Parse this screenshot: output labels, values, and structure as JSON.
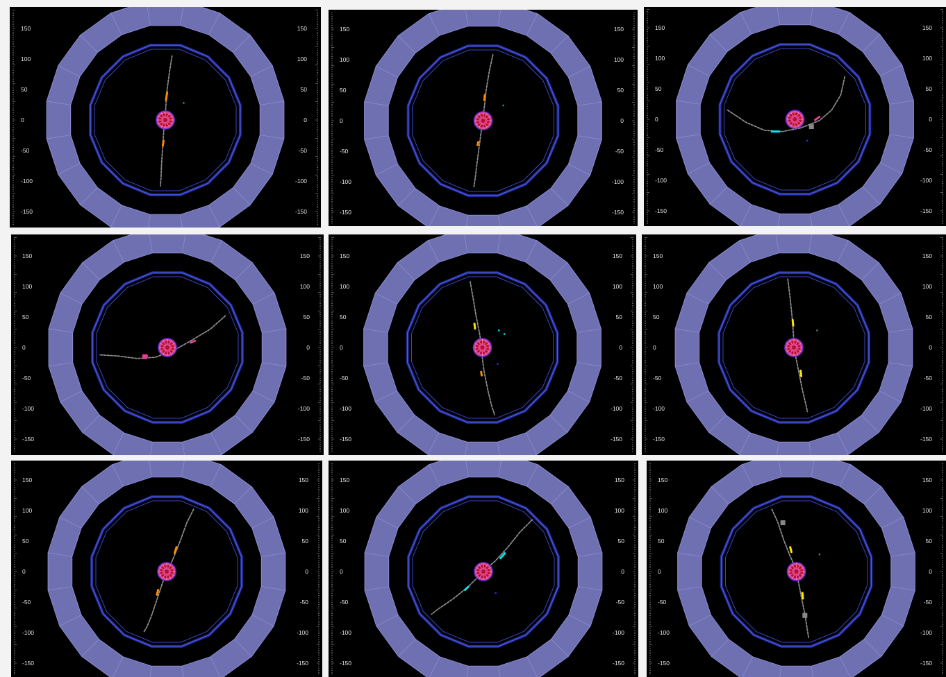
{
  "axis_tick_labels": [
    "150",
    "100",
    "50",
    "0",
    "-50",
    "-100",
    "-150"
  ],
  "colors": {
    "background": "#000000",
    "outer_ring": "#6f70b2",
    "inner_ring": "#1e2a9a",
    "core_pink": "#e0448e",
    "core_red": "#b3112e",
    "track_gray": "#8a8a8a"
  },
  "panels": [
    {
      "id": "p1",
      "tracks": [
        {
          "color": "#8a8a8a",
          "points": [
            [
              11,
              105
            ],
            [
              7,
              80
            ],
            [
              3,
              50
            ],
            [
              1,
              25
            ],
            [
              0,
              8
            ]
          ]
        },
        {
          "color": "#8a8a8a",
          "points": [
            [
              -2,
              -10
            ],
            [
              -4,
              -40
            ],
            [
              -6,
              -70
            ],
            [
              -7,
              -95
            ],
            [
              -8,
              -108
            ]
          ]
        },
        {
          "color": "#ff8c00",
          "points": [
            [
              3,
              45
            ],
            [
              1,
              32
            ]
          ]
        },
        {
          "color": "#ff8c00",
          "points": [
            [
              -3,
              -34
            ],
            [
              -4,
              -42
            ]
          ]
        }
      ],
      "hits": [
        {
          "color": "#3f8f55",
          "xy": [
            30,
            28
          ]
        }
      ]
    },
    {
      "id": "p2",
      "tracks": [
        {
          "color": "#8a8a8a",
          "points": [
            [
              16,
              108
            ],
            [
              10,
              80
            ],
            [
              5,
              50
            ],
            [
              2,
              22
            ],
            [
              0,
              8
            ]
          ]
        },
        {
          "color": "#8a8a8a",
          "points": [
            [
              -2,
              -10
            ],
            [
              -6,
              -40
            ],
            [
              -10,
              -70
            ],
            [
              -13,
              -95
            ],
            [
              -15,
              -108
            ]
          ]
        },
        {
          "color": "#ff8c00",
          "points": [
            [
              3,
              42
            ],
            [
              2,
              34
            ]
          ]
        },
        {
          "color": "#ff8c00",
          "points": [
            [
              -8,
              -35
            ],
            [
              -9,
              -40
            ]
          ]
        }
      ],
      "hits": [
        {
          "color": "#3f8f55",
          "xy": [
            33,
            25
          ]
        }
      ]
    },
    {
      "id": "p3",
      "tracks": [
        {
          "color": "#8a8a8a",
          "points": [
            [
              -110,
              15
            ],
            [
              -80,
              -5
            ],
            [
              -50,
              -18
            ],
            [
              -20,
              -20
            ],
            [
              10,
              -14
            ],
            [
              40,
              -2
            ],
            [
              60,
              15
            ],
            [
              75,
              40
            ],
            [
              82,
              72
            ]
          ]
        },
        {
          "color": "#00e5ee",
          "points": [
            [
              -38,
              -20
            ],
            [
              -25,
              -20
            ]
          ]
        },
        {
          "color": "#e0448e",
          "points": [
            [
              33,
              -1
            ],
            [
              40,
              4
            ]
          ]
        }
      ],
      "hits": [
        {
          "color": "#2233dd",
          "xy": [
            20,
            -35
          ]
        },
        {
          "color": "#888888",
          "xy": [
            27,
            -12
          ]
        }
      ]
    },
    {
      "id": "p4",
      "tracks": [
        {
          "color": "#8a8a8a",
          "points": [
            [
              -110,
              -12
            ],
            [
              -80,
              -14
            ],
            [
              -50,
              -18
            ],
            [
              -20,
              -16
            ],
            [
              10,
              -5
            ],
            [
              40,
              12
            ],
            [
              70,
              30
            ],
            [
              95,
              52
            ]
          ]
        },
        {
          "color": "#e0448e",
          "points": [
            [
              -38,
              -17
            ],
            [
              -33,
              -14
            ]
          ]
        },
        {
          "color": "#e0448e",
          "points": [
            [
              38,
              8
            ],
            [
              45,
              11
            ]
          ]
        }
      ],
      "hits": [
        {
          "color": "#e0448e",
          "xy": [
            -37,
            -15
          ]
        }
      ]
    },
    {
      "id": "p5",
      "tracks": [
        {
          "color": "#8a8a8a",
          "points": [
            [
              -20,
              108
            ],
            [
              -15,
              80
            ],
            [
              -10,
              50
            ],
            [
              -5,
              25
            ],
            [
              -2,
              8
            ]
          ]
        },
        {
          "color": "#8a8a8a",
          "points": [
            [
              -1,
              -10
            ],
            [
              3,
              -40
            ],
            [
              9,
              -70
            ],
            [
              15,
              -95
            ],
            [
              20,
              -110
            ]
          ]
        },
        {
          "color": "#ffe600",
          "points": [
            [
              -13,
              39
            ],
            [
              -12,
              31
            ]
          ]
        },
        {
          "color": "#ff8c00",
          "points": [
            [
              -2,
              -40
            ],
            [
              -1,
              -46
            ]
          ]
        }
      ],
      "hits": [
        {
          "color": "#00e5ee",
          "xy": [
            27,
            28
          ]
        },
        {
          "color": "#00e5ee",
          "xy": [
            36,
            22
          ]
        },
        {
          "color": "#2233dd",
          "xy": [
            25,
            -27
          ]
        }
      ]
    },
    {
      "id": "p6",
      "tracks": [
        {
          "color": "#8a8a8a",
          "points": [
            [
              -10,
              112
            ],
            [
              -6,
              80
            ],
            [
              -3,
              50
            ],
            [
              -1,
              25
            ],
            [
              0,
              8
            ]
          ]
        },
        {
          "color": "#8a8a8a",
          "points": [
            [
              2,
              -10
            ],
            [
              8,
              -40
            ],
            [
              14,
              -70
            ],
            [
              20,
              -95
            ],
            [
              22,
              -105
            ]
          ]
        },
        {
          "color": "#ffe600",
          "points": [
            [
              -2,
              45
            ],
            [
              -1,
              35
            ]
          ]
        },
        {
          "color": "#ffe600",
          "points": [
            [
              11,
              -38
            ],
            [
              12,
              -47
            ]
          ]
        }
      ],
      "hits": [
        {
          "color": "#3f8f55",
          "xy": [
            38,
            28
          ]
        }
      ]
    },
    {
      "id": "p7",
      "tracks": [
        {
          "color": "#8a8a8a",
          "points": [
            [
              44,
              102
            ],
            [
              33,
              80
            ],
            [
              22,
              50
            ],
            [
              12,
              25
            ],
            [
              5,
              8
            ]
          ]
        },
        {
          "color": "#8a8a8a",
          "points": [
            [
              -4,
              -10
            ],
            [
              -14,
              -40
            ],
            [
              -24,
              -70
            ],
            [
              -32,
              -90
            ],
            [
              -38,
              -100
            ]
          ]
        },
        {
          "color": "#ff8c00",
          "points": [
            [
              16,
              40
            ],
            [
              13,
              30
            ]
          ]
        },
        {
          "color": "#ff8c00",
          "points": [
            [
              -14,
              -30
            ],
            [
              -16,
              -38
            ]
          ]
        }
      ],
      "hits": []
    },
    {
      "id": "p8",
      "tracks": [
        {
          "color": "#8a8a8a",
          "points": [
            [
              80,
              85
            ],
            [
              60,
              65
            ],
            [
              40,
              40
            ],
            [
              20,
              18
            ],
            [
              5,
              5
            ]
          ]
        },
        {
          "color": "#8a8a8a",
          "points": [
            [
              -5,
              -5
            ],
            [
              -25,
              -25
            ],
            [
              -50,
              -45
            ],
            [
              -75,
              -62
            ],
            [
              -85,
              -70
            ]
          ]
        },
        {
          "color": "#00e5ee",
          "points": [
            [
              35,
              30
            ],
            [
              28,
              22
            ]
          ]
        },
        {
          "color": "#00e5ee",
          "points": [
            [
              -25,
              -25
            ],
            [
              -30,
              -30
            ]
          ]
        }
      ],
      "hits": [
        {
          "color": "#2233dd",
          "xy": [
            20,
            -35
          ]
        }
      ]
    },
    {
      "id": "p9",
      "tracks": [
        {
          "color": "#8a8a8a",
          "points": [
            [
              -40,
              102
            ],
            [
              -30,
              80
            ],
            [
              -20,
              50
            ],
            [
              -10,
              25
            ],
            [
              -2,
              8
            ]
          ]
        },
        {
          "color": "#8a8a8a",
          "points": [
            [
              2,
              -10
            ],
            [
              8,
              -40
            ],
            [
              14,
              -70
            ],
            [
              18,
              -95
            ],
            [
              20,
              -108
            ]
          ]
        },
        {
          "color": "#ffe600",
          "points": [
            [
              -10,
              40
            ],
            [
              -8,
              32
            ]
          ]
        },
        {
          "color": "#ffe600",
          "points": [
            [
              10,
              -35
            ],
            [
              11,
              -45
            ]
          ]
        }
      ],
      "hits": [
        {
          "color": "#888888",
          "xy": [
            -22,
            80
          ]
        },
        {
          "color": "#888888",
          "xy": [
            14,
            -72
          ]
        },
        {
          "color": "#3f8f55",
          "xy": [
            38,
            28
          ]
        }
      ]
    }
  ]
}
